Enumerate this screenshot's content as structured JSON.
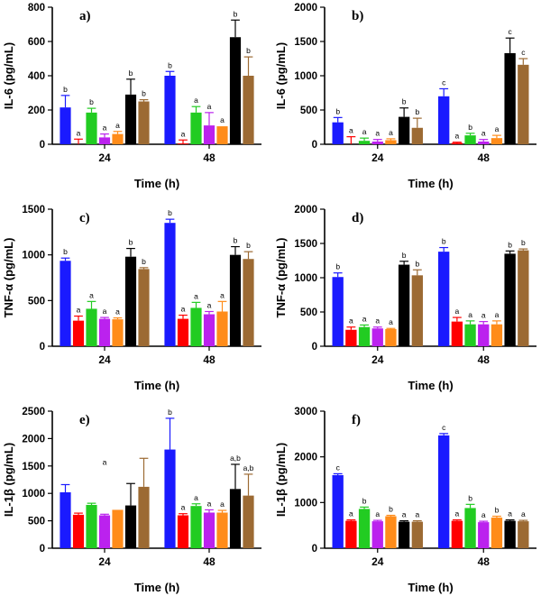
{
  "colors": [
    "#1a1aff",
    "#ff0000",
    "#22cc22",
    "#bb22ee",
    "#ff8c1a",
    "#000000",
    "#9c6a33"
  ],
  "chart_data": [
    {
      "type": "bar",
      "panel": "a)",
      "ylabel": "IL-6 (pg/mL)",
      "xlabel": "Time (h)",
      "categories": [
        "24",
        "48"
      ],
      "ylim": [
        0,
        800
      ],
      "yticks": [
        0,
        200,
        400,
        600,
        800
      ],
      "series_values": [
        [
          215,
          400
        ],
        [
          0,
          5
        ],
        [
          185,
          185
        ],
        [
          40,
          110
        ],
        [
          60,
          105
        ],
        [
          290,
          625
        ],
        [
          250,
          400
        ]
      ],
      "series_errors": [
        [
          70,
          25
        ],
        [
          30,
          20
        ],
        [
          25,
          35
        ],
        [
          20,
          75
        ],
        [
          15,
          0
        ],
        [
          90,
          100
        ],
        [
          10,
          110
        ]
      ],
      "series_labels": [
        [
          "b",
          "b"
        ],
        [
          "a",
          "a"
        ],
        [
          "b",
          "a"
        ],
        [
          "a",
          "a"
        ],
        [
          "a",
          "a"
        ],
        [
          "b",
          "b"
        ],
        [
          "b",
          "b"
        ]
      ],
      "annotations": []
    },
    {
      "type": "bar",
      "panel": "b)",
      "ylabel": "IL-6 (pg/mL)",
      "xlabel": "Time (h)",
      "categories": [
        "24",
        "48"
      ],
      "ylim": [
        0,
        2000
      ],
      "yticks": [
        0,
        500,
        1000,
        1500,
        2000
      ],
      "series_values": [
        [
          320,
          700
        ],
        [
          0,
          20
        ],
        [
          50,
          130
        ],
        [
          40,
          40
        ],
        [
          60,
          90
        ],
        [
          400,
          1330
        ],
        [
          240,
          1160
        ]
      ],
      "series_errors": [
        [
          70,
          110
        ],
        [
          110,
          10
        ],
        [
          40,
          30
        ],
        [
          30,
          30
        ],
        [
          20,
          40
        ],
        [
          130,
          220
        ],
        [
          140,
          90
        ]
      ],
      "series_labels": [
        [
          "b",
          "c"
        ],
        [
          "a",
          "a"
        ],
        [
          "a",
          "b"
        ],
        [
          "a",
          "a"
        ],
        [
          "a",
          "a"
        ],
        [
          "b",
          "c"
        ],
        [
          "b",
          "c"
        ]
      ],
      "annotations": []
    },
    {
      "type": "bar",
      "panel": "c)",
      "ylabel": "TNF-α (pg/mL)",
      "xlabel": "Time (h)",
      "categories": [
        "24",
        "48"
      ],
      "ylim": [
        0,
        1500
      ],
      "yticks": [
        0,
        500,
        1000,
        1500
      ],
      "series_values": [
        [
          935,
          1350
        ],
        [
          280,
          300
        ],
        [
          410,
          420
        ],
        [
          300,
          350
        ],
        [
          295,
          380
        ],
        [
          980,
          1000
        ],
        [
          845,
          955
        ]
      ],
      "series_errors": [
        [
          30,
          40
        ],
        [
          50,
          40
        ],
        [
          80,
          60
        ],
        [
          15,
          30
        ],
        [
          15,
          110
        ],
        [
          90,
          90
        ],
        [
          15,
          80
        ]
      ],
      "series_labels": [
        [
          "b",
          "b"
        ],
        [
          "a",
          "a"
        ],
        [
          "a",
          "a"
        ],
        [
          "a",
          "a"
        ],
        [
          "a",
          "a"
        ],
        [
          "b",
          "b"
        ],
        [
          "b",
          "b"
        ]
      ],
      "annotations": []
    },
    {
      "type": "bar",
      "panel": "d)",
      "ylabel": "TNF-α (pg/mL)",
      "xlabel": "Time (h)",
      "categories": [
        "24",
        "48"
      ],
      "ylim": [
        0,
        2000
      ],
      "yticks": [
        0,
        500,
        1000,
        1500,
        2000
      ],
      "series_values": [
        [
          1010,
          1380
        ],
        [
          240,
          360
        ],
        [
          280,
          320
        ],
        [
          260,
          320
        ],
        [
          250,
          320
        ],
        [
          1190,
          1350
        ],
        [
          1035,
          1400
        ]
      ],
      "series_errors": [
        [
          60,
          60
        ],
        [
          40,
          60
        ],
        [
          30,
          50
        ],
        [
          20,
          40
        ],
        [
          10,
          50
        ],
        [
          50,
          40
        ],
        [
          80,
          20
        ]
      ],
      "series_labels": [
        [
          "b",
          "b"
        ],
        [
          "a",
          "a"
        ],
        [
          "a",
          "a"
        ],
        [
          "a",
          "a"
        ],
        [
          "a",
          "a"
        ],
        [
          "b",
          "b"
        ],
        [
          "b",
          "b"
        ]
      ],
      "annotations": []
    },
    {
      "type": "bar",
      "panel": "e)",
      "ylabel": "IL-1β (pg/mL)",
      "xlabel": "Time (h)",
      "categories": [
        "24",
        "48"
      ],
      "ylim": [
        0,
        2500
      ],
      "yticks": [
        0,
        500,
        1000,
        1500,
        2000,
        2500
      ],
      "series_values": [
        [
          1020,
          1800
        ],
        [
          610,
          600
        ],
        [
          790,
          770
        ],
        [
          600,
          650
        ],
        [
          700,
          650
        ],
        [
          780,
          1080
        ],
        [
          1120,
          960
        ]
      ],
      "series_errors": [
        [
          140,
          570
        ],
        [
          30,
          30
        ],
        [
          30,
          40
        ],
        [
          20,
          50
        ],
        [
          0,
          40
        ],
        [
          400,
          450
        ],
        [
          520,
          390
        ]
      ],
      "series_labels": [
        [
          "",
          "b"
        ],
        [
          "",
          "a"
        ],
        [
          "",
          "a"
        ],
        [
          "",
          "a"
        ],
        [
          "",
          "a"
        ],
        [
          "",
          "a,b"
        ],
        [
          "",
          "a,b"
        ]
      ],
      "annotations": [
        {
          "text": "a",
          "category": 0,
          "value": 1520
        }
      ]
    },
    {
      "type": "bar",
      "panel": "f)",
      "ylabel": "IL-1β (pg/mL)",
      "xlabel": "Time (h)",
      "categories": [
        "24",
        "48"
      ],
      "ylim": [
        0,
        3000
      ],
      "yticks": [
        0,
        1000,
        2000,
        3000
      ],
      "series_values": [
        [
          1600,
          2470
        ],
        [
          600,
          600
        ],
        [
          860,
          880
        ],
        [
          590,
          570
        ],
        [
          700,
          670
        ],
        [
          580,
          600
        ],
        [
          580,
          590
        ]
      ],
      "series_errors": [
        [
          30,
          40
        ],
        [
          20,
          20
        ],
        [
          40,
          80
        ],
        [
          20,
          20
        ],
        [
          20,
          30
        ],
        [
          20,
          20
        ],
        [
          20,
          20
        ]
      ],
      "series_labels": [
        [
          "c",
          "c"
        ],
        [
          "a",
          "a"
        ],
        [
          "b",
          "b"
        ],
        [
          "a",
          "a"
        ],
        [
          "b",
          "b"
        ],
        [
          "a",
          "a"
        ],
        [
          "a",
          "a"
        ]
      ],
      "annotations": []
    }
  ]
}
